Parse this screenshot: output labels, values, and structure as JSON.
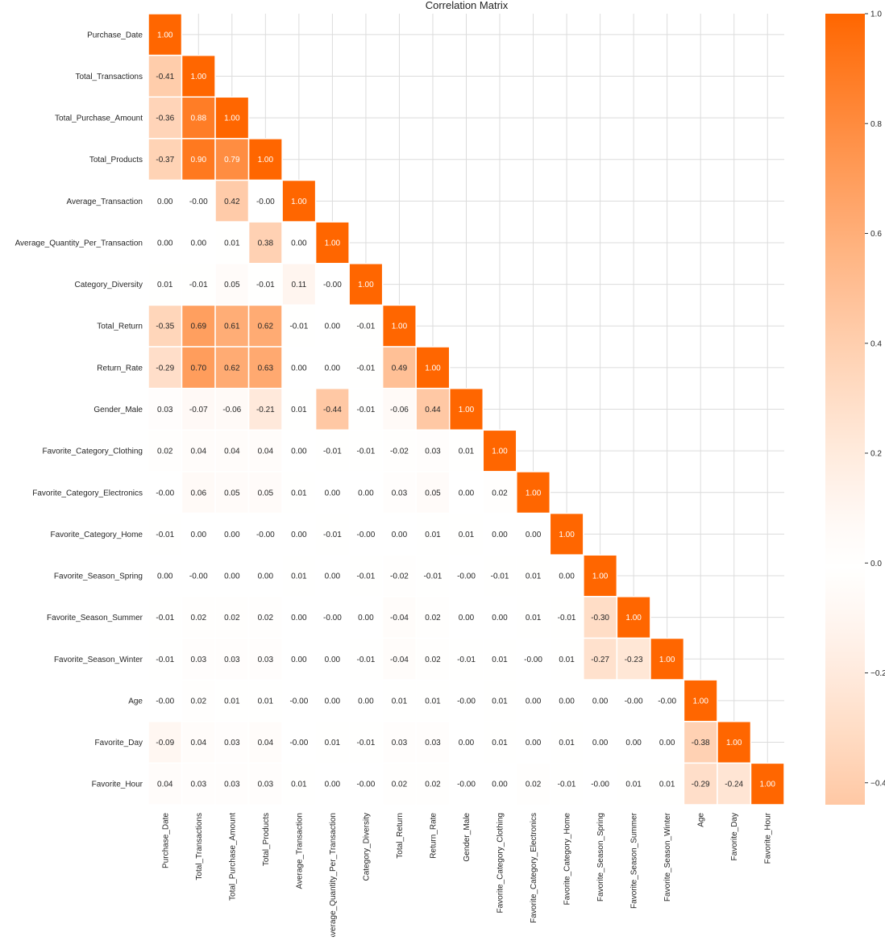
{
  "chart_data": {
    "type": "heatmap",
    "title": "Correlation Matrix",
    "labels": [
      "Purchase_Date",
      "Total_Transactions",
      "Total_Purchase_Amount",
      "Total_Products",
      "Average_Transaction",
      "Average_Quantity_Per_Transaction",
      "Category_Diversity",
      "Total_Return",
      "Return_Rate",
      "Gender_Male",
      "Favorite_Category_Clothing",
      "Favorite_Category_Electronics",
      "Favorite_Category_Home",
      "Favorite_Season_Spring",
      "Favorite_Season_Summer",
      "Favorite_Season_Winter",
      "Age",
      "Favorite_Day",
      "Favorite_Hour"
    ],
    "mask": "upper-triangle",
    "values": [
      [
        "1.00"
      ],
      [
        "-0.41",
        "1.00"
      ],
      [
        "-0.36",
        "0.88",
        "1.00"
      ],
      [
        "-0.37",
        "0.90",
        "0.79",
        "1.00"
      ],
      [
        "0.00",
        "-0.00",
        "0.42",
        "-0.00",
        "1.00"
      ],
      [
        "0.00",
        "0.00",
        "0.01",
        "0.38",
        "0.00",
        "1.00"
      ],
      [
        "0.01",
        "-0.01",
        "0.05",
        "-0.01",
        "0.11",
        "-0.00",
        "1.00"
      ],
      [
        "-0.35",
        "0.69",
        "0.61",
        "0.62",
        "-0.01",
        "0.00",
        "-0.01",
        "1.00"
      ],
      [
        "-0.29",
        "0.70",
        "0.62",
        "0.63",
        "0.00",
        "0.00",
        "-0.01",
        "0.49",
        "1.00"
      ],
      [
        "0.03",
        "-0.07",
        "-0.06",
        "-0.21",
        "0.01",
        "-0.44",
        "-0.01",
        "-0.06",
        "0.44",
        "1.00"
      ],
      [
        "0.02",
        "0.04",
        "0.04",
        "0.04",
        "0.00",
        "-0.01",
        "-0.01",
        "-0.02",
        "0.03",
        "0.01",
        "1.00"
      ],
      [
        "-0.00",
        "0.06",
        "0.05",
        "0.05",
        "0.01",
        "0.00",
        "0.00",
        "0.03",
        "0.05",
        "0.00",
        "0.02",
        "1.00"
      ],
      [
        "-0.01",
        "0.00",
        "0.00",
        "-0.00",
        "0.00",
        "-0.01",
        "-0.00",
        "0.00",
        "0.01",
        "0.01",
        "0.00",
        "0.00",
        "1.00"
      ],
      [
        "0.00",
        "-0.00",
        "0.00",
        "0.00",
        "0.01",
        "0.00",
        "-0.01",
        "-0.02",
        "-0.01",
        "-0.00",
        "-0.01",
        "0.01",
        "0.00",
        "1.00"
      ],
      [
        "-0.01",
        "0.02",
        "0.02",
        "0.02",
        "0.00",
        "-0.00",
        "0.00",
        "-0.04",
        "0.02",
        "0.00",
        "0.00",
        "0.01",
        "-0.01",
        "-0.30",
        "1.00"
      ],
      [
        "-0.01",
        "0.03",
        "0.03",
        "0.03",
        "0.00",
        "0.00",
        "-0.01",
        "-0.04",
        "0.02",
        "-0.01",
        "0.01",
        "-0.00",
        "0.01",
        "-0.27",
        "-0.23",
        "1.00"
      ],
      [
        "-0.00",
        "0.02",
        "0.01",
        "0.01",
        "-0.00",
        "0.00",
        "0.00",
        "0.01",
        "0.01",
        "-0.00",
        "0.01",
        "0.00",
        "0.00",
        "0.00",
        "-0.00",
        "-0.00",
        "1.00"
      ],
      [
        "-0.09",
        "0.04",
        "0.03",
        "0.04",
        "-0.00",
        "0.01",
        "-0.01",
        "0.03",
        "0.03",
        "0.00",
        "0.01",
        "0.00",
        "0.01",
        "0.00",
        "0.00",
        "0.00",
        "-0.38",
        "1.00"
      ],
      [
        "0.04",
        "0.03",
        "0.03",
        "0.03",
        "0.01",
        "0.00",
        "-0.00",
        "0.02",
        "0.02",
        "-0.00",
        "0.00",
        "0.02",
        "-0.01",
        "-0.00",
        "0.01",
        "0.01",
        "-0.29",
        "-0.24",
        "1.00"
      ]
    ],
    "colorbar": {
      "ticks": [
        "1.0",
        "0.8",
        "0.6",
        "0.4",
        "0.2",
        "0.0",
        "−0.2",
        "−0.4"
      ],
      "tick_values": [
        1.0,
        0.8,
        0.6,
        0.4,
        0.2,
        0.0,
        -0.2,
        -0.4
      ],
      "range": [
        -0.44,
        1.0
      ]
    },
    "colors": {
      "high": "#ff6600",
      "zero": "#ffffff",
      "grid": "#dcdcdc"
    },
    "grid": true
  }
}
